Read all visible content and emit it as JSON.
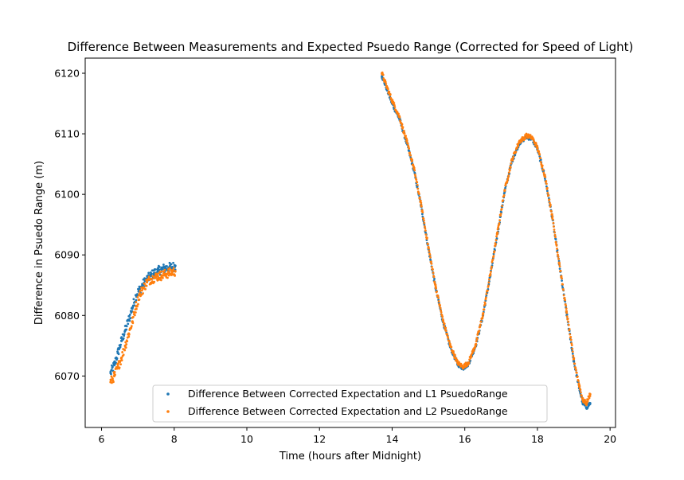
{
  "chart_data": {
    "type": "scatter",
    "title": "Difference Between Measurements and Expected Psuedo Range (Corrected for Speed of Light)",
    "xlabel": "Time (hours after Midnight)",
    "ylabel": "Difference in Psuedo Range (m)",
    "xlim": [
      5.55,
      20.15
    ],
    "ylim": [
      6061.5,
      6122.5
    ],
    "xticks": [
      6,
      8,
      10,
      12,
      14,
      16,
      18,
      20
    ],
    "yticks": [
      6070,
      6080,
      6090,
      6100,
      6110,
      6120
    ],
    "grid": false,
    "legend_position": "lower-center",
    "series": [
      {
        "name": "Difference Between Corrected Expectation and L1 PsuedoRange",
        "color": "#1f77b4",
        "segments": [
          {
            "x": [
              6.25,
              6.35,
              6.45,
              6.55,
              6.65,
              6.75,
              6.85,
              6.95,
              7.05,
              7.15,
              7.25,
              7.35,
              7.45,
              7.55,
              7.65,
              7.75,
              7.85,
              7.95,
              8.03
            ],
            "y": [
              6070.5,
              6071.8,
              6073.8,
              6075.8,
              6077.5,
              6079.3,
              6081.3,
              6083.3,
              6084.3,
              6085.2,
              6086.0,
              6086.5,
              6087.0,
              6087.3,
              6087.6,
              6087.8,
              6087.9,
              6088.0,
              6088.2
            ]
          },
          {
            "x": [
              13.72,
              13.85,
              14.0,
              14.2,
              14.4,
              14.6,
              14.8,
              15.0,
              15.2,
              15.4,
              15.6,
              15.8,
              15.95,
              16.1,
              16.3,
              16.5,
              16.7,
              16.9,
              17.1,
              17.3,
              17.5,
              17.7,
              17.85,
              18.0,
              18.2,
              18.4,
              18.6,
              18.8,
              19.0,
              19.15,
              19.25,
              19.35,
              19.45
            ],
            "y": [
              6119.5,
              6117.5,
              6115.0,
              6112.5,
              6108.5,
              6104.0,
              6098.0,
              6091.0,
              6084.5,
              6079.0,
              6074.8,
              6072.0,
              6071.3,
              6072.0,
              6075.0,
              6080.0,
              6086.5,
              6093.5,
              6100.5,
              6105.5,
              6108.5,
              6109.5,
              6109.2,
              6107.5,
              6103.0,
              6096.5,
              6088.5,
              6080.5,
              6072.5,
              6068.0,
              6065.5,
              6064.8,
              6065.5
            ]
          }
        ]
      },
      {
        "name": "Difference Between Corrected Expectation and L2 PsuedoRange",
        "color": "#ff7f0e",
        "segments": [
          {
            "x": [
              6.25,
              6.35,
              6.45,
              6.55,
              6.65,
              6.75,
              6.85,
              6.95,
              7.05,
              7.15,
              7.25,
              7.35,
              7.45,
              7.55,
              7.65,
              7.75,
              7.85,
              7.95,
              8.03
            ],
            "y": [
              6069.0,
              6070.0,
              6071.5,
              6073.0,
              6075.0,
              6077.0,
              6079.0,
              6081.5,
              6083.5,
              6084.5,
              6085.5,
              6086.0,
              6086.2,
              6086.5,
              6086.6,
              6086.8,
              6087.0,
              6087.2,
              6087.3
            ]
          },
          {
            "x": [
              13.72,
              13.85,
              14.0,
              14.2,
              14.4,
              14.6,
              14.8,
              15.0,
              15.2,
              15.4,
              15.6,
              15.8,
              15.95,
              16.1,
              16.3,
              16.5,
              16.7,
              16.9,
              17.1,
              17.3,
              17.5,
              17.7,
              17.85,
              18.0,
              18.2,
              18.4,
              18.6,
              18.8,
              19.0,
              19.15,
              19.25,
              19.35,
              19.45
            ],
            "y": [
              6120.0,
              6117.8,
              6115.5,
              6112.8,
              6108.8,
              6104.3,
              6098.2,
              6091.2,
              6084.7,
              6079.2,
              6075.0,
              6072.2,
              6071.5,
              6072.2,
              6075.2,
              6080.2,
              6086.7,
              6093.7,
              6100.7,
              6105.7,
              6108.7,
              6109.7,
              6109.4,
              6107.7,
              6103.2,
              6096.7,
              6088.7,
              6080.7,
              6072.8,
              6068.5,
              6066.0,
              6065.5,
              6067.0
            ]
          }
        ]
      }
    ]
  }
}
